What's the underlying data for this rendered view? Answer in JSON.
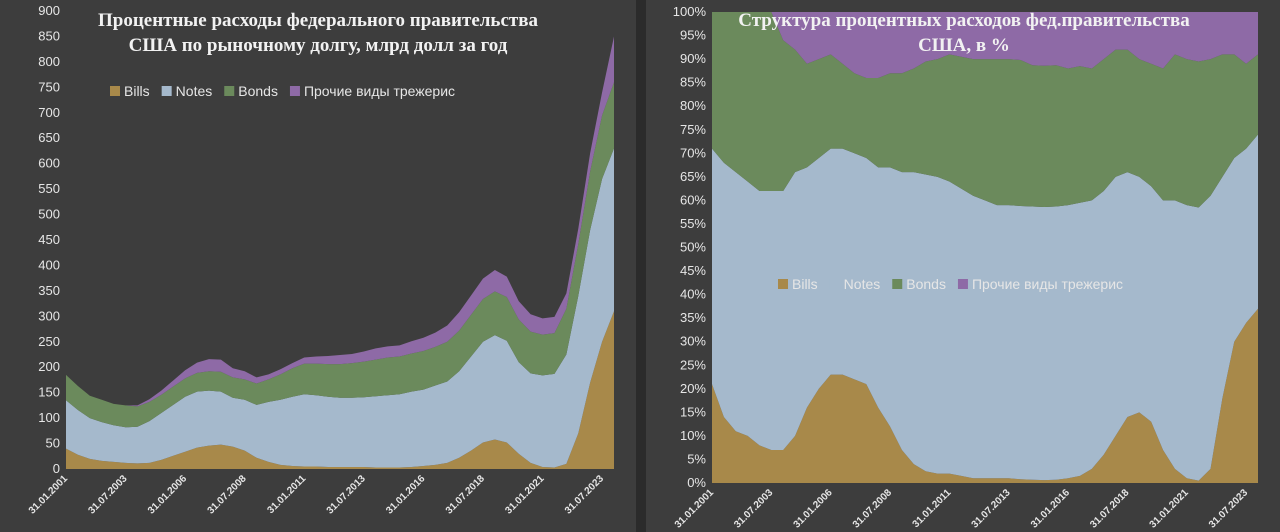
{
  "colors": {
    "Bills": "#a8894a",
    "Notes": "#a5b9cc",
    "Bonds": "#6b8a5c",
    "Other": "#8e6aa6"
  },
  "chart_data": [
    {
      "type": "area",
      "stacked": true,
      "title_lines": [
        "Процентные расходы федерального правительства",
        "США по рыночному долгу, млрд долл за год"
      ],
      "ylim": [
        0,
        900
      ],
      "yticks": [
        0,
        50,
        100,
        150,
        200,
        250,
        300,
        350,
        400,
        450,
        500,
        550,
        600,
        650,
        700,
        750,
        800,
        850,
        900
      ],
      "x_tick_labels": [
        "31.01.2001",
        "31.07.2003",
        "31.01.2006",
        "31.07.2008",
        "31.01.2011",
        "31.07.2013",
        "31.01.2016",
        "31.07.2018",
        "31.01.2021",
        "31.07.2023"
      ],
      "x_tick_years": [
        2001.08,
        2003.58,
        2006.08,
        2008.58,
        2011.08,
        2013.58,
        2016.08,
        2018.58,
        2021.08,
        2023.58
      ],
      "x_range": [
        2001.0,
        2024.0
      ],
      "legend": [
        "Bills",
        "Notes",
        "Bonds",
        "Прочие виды трежерис"
      ],
      "legend_position": "top-center",
      "grid": false,
      "x": [
        2001.0,
        2001.5,
        2002.0,
        2002.5,
        2003.0,
        2003.5,
        2004.0,
        2004.5,
        2005.0,
        2005.5,
        2006.0,
        2006.5,
        2007.0,
        2007.5,
        2008.0,
        2008.5,
        2009.0,
        2009.5,
        2010.0,
        2010.5,
        2011.0,
        2011.5,
        2012.0,
        2012.5,
        2013.0,
        2013.5,
        2014.0,
        2014.5,
        2015.0,
        2015.5,
        2016.0,
        2016.5,
        2017.0,
        2017.5,
        2018.0,
        2018.5,
        2019.0,
        2019.5,
        2020.0,
        2020.5,
        2021.0,
        2021.5,
        2022.0,
        2022.5,
        2023.0,
        2023.5,
        2024.0
      ],
      "series": [
        {
          "name": "Bills",
          "values": [
            40,
            28,
            20,
            16,
            14,
            12,
            11,
            12,
            18,
            26,
            34,
            42,
            46,
            48,
            44,
            36,
            22,
            14,
            8,
            6,
            5,
            5,
            4,
            4,
            4,
            4,
            3,
            3,
            3,
            4,
            6,
            8,
            12,
            22,
            36,
            52,
            58,
            52,
            30,
            12,
            4,
            3,
            10,
            70,
            170,
            250,
            310
          ]
        },
        {
          "name": "Notes",
          "values": [
            95,
            88,
            80,
            76,
            72,
            70,
            72,
            82,
            92,
            100,
            108,
            110,
            108,
            104,
            96,
            100,
            104,
            118,
            128,
            136,
            142,
            140,
            138,
            136,
            136,
            137,
            140,
            142,
            144,
            148,
            150,
            156,
            160,
            170,
            185,
            198,
            205,
            200,
            180,
            176,
            180,
            184,
            215,
            270,
            300,
            320,
            320
          ]
        },
        {
          "name": "Bonds",
          "values": [
            50,
            47,
            44,
            44,
            42,
            43,
            40,
            38,
            36,
            36,
            36,
            37,
            38,
            39,
            40,
            40,
            42,
            44,
            50,
            56,
            60,
            62,
            64,
            66,
            68,
            70,
            72,
            74,
            74,
            75,
            76,
            76,
            78,
            80,
            82,
            84,
            86,
            86,
            84,
            82,
            80,
            80,
            90,
            102,
            115,
            125,
            130
          ]
        },
        {
          "name": "Прочие виды трежерис",
          "values": [
            0,
            0,
            0,
            0,
            0,
            0,
            2,
            5,
            8,
            12,
            16,
            20,
            24,
            24,
            18,
            16,
            12,
            10,
            10,
            10,
            12,
            14,
            16,
            18,
            18,
            20,
            22,
            22,
            22,
            24,
            26,
            28,
            32,
            36,
            38,
            40,
            42,
            40,
            36,
            34,
            32,
            32,
            30,
            30,
            36,
            45,
            90
          ]
        }
      ]
    },
    {
      "type": "area",
      "stacked": true,
      "percent": true,
      "title_lines": [
        "Структура процентных расходов фед.правительства",
        "США, в %"
      ],
      "ylim": [
        0,
        100
      ],
      "yticks": [
        "0%",
        "5%",
        "10%",
        "15%",
        "20%",
        "25%",
        "30%",
        "35%",
        "40%",
        "45%",
        "50%",
        "55%",
        "60%",
        "65%",
        "70%",
        "75%",
        "80%",
        "85%",
        "90%",
        "95%",
        "100%"
      ],
      "x_tick_labels": [
        "31.01.2001",
        "31.07.2003",
        "31.01.2006",
        "31.07.2008",
        "31.01.2011",
        "31.07.2013",
        "31.01.2016",
        "31.07.2018",
        "31.01.2021",
        "31.07.2023"
      ],
      "x_tick_years": [
        2001.08,
        2003.58,
        2006.08,
        2008.58,
        2011.08,
        2013.58,
        2016.08,
        2018.58,
        2021.08,
        2023.58
      ],
      "x_range": [
        2001.0,
        2024.0
      ],
      "legend": [
        "Bills",
        "Notes",
        "Bonds",
        "Прочие виды трежерис"
      ],
      "legend_position": "center",
      "grid": false,
      "x": [
        2001.0,
        2001.5,
        2002.0,
        2002.5,
        2003.0,
        2003.5,
        2004.0,
        2004.5,
        2005.0,
        2005.5,
        2006.0,
        2006.5,
        2007.0,
        2007.5,
        2008.0,
        2008.5,
        2009.0,
        2009.5,
        2010.0,
        2010.5,
        2011.0,
        2011.5,
        2012.0,
        2012.5,
        2013.0,
        2013.5,
        2014.0,
        2014.5,
        2015.0,
        2015.5,
        2016.0,
        2016.5,
        2017.0,
        2017.5,
        2018.0,
        2018.5,
        2019.0,
        2019.5,
        2020.0,
        2020.5,
        2021.0,
        2021.5,
        2022.0,
        2022.5,
        2023.0,
        2023.5,
        2024.0
      ],
      "series": [
        {
          "name": "Bills",
          "values": [
            21,
            14,
            11,
            10,
            8,
            7,
            7,
            10,
            16,
            20,
            23,
            23,
            22,
            21,
            16,
            12,
            7,
            4,
            2.5,
            2,
            2,
            1.5,
            1,
            1,
            1,
            1,
            0.8,
            0.7,
            0.6,
            0.7,
            1,
            1.5,
            3,
            6,
            10,
            14,
            15,
            13,
            7,
            3,
            1,
            0.5,
            3,
            18,
            30,
            34,
            37
          ]
        },
        {
          "name": "Notes",
          "values": [
            50,
            54,
            55,
            54,
            54,
            55,
            55,
            56,
            51,
            49,
            48,
            48,
            48,
            48,
            51,
            55,
            59,
            62,
            63,
            63,
            62,
            61,
            60,
            59,
            58,
            58,
            58,
            58,
            58,
            58,
            58,
            58,
            57,
            56,
            55,
            52,
            50,
            50,
            53,
            57,
            58,
            58,
            58,
            47,
            39,
            37,
            37
          ]
        },
        {
          "name": "Bonds",
          "values": [
            29,
            32,
            34,
            36,
            38,
            38,
            32,
            26,
            22,
            21,
            20,
            18,
            17,
            17,
            19,
            20,
            21,
            22,
            24,
            25,
            27,
            28,
            29,
            30,
            31,
            31,
            31,
            30,
            30,
            30,
            29,
            29,
            28,
            28,
            27,
            26,
            25,
            26,
            28,
            31,
            31,
            31,
            29,
            26,
            22,
            18,
            17
          ]
        },
        {
          "name": "Прочие виды трежерис",
          "values": [
            0,
            0,
            0,
            0,
            0,
            0,
            6,
            8,
            11,
            10,
            9,
            11,
            13,
            14,
            14,
            13,
            13,
            12,
            10.5,
            10,
            9,
            9.5,
            10,
            10,
            10,
            10,
            10.2,
            11.3,
            11.4,
            11.3,
            12,
            11.5,
            12,
            10,
            8,
            8,
            10,
            11,
            12,
            9,
            10,
            10.5,
            10,
            9,
            9,
            11,
            9
          ]
        }
      ]
    }
  ]
}
